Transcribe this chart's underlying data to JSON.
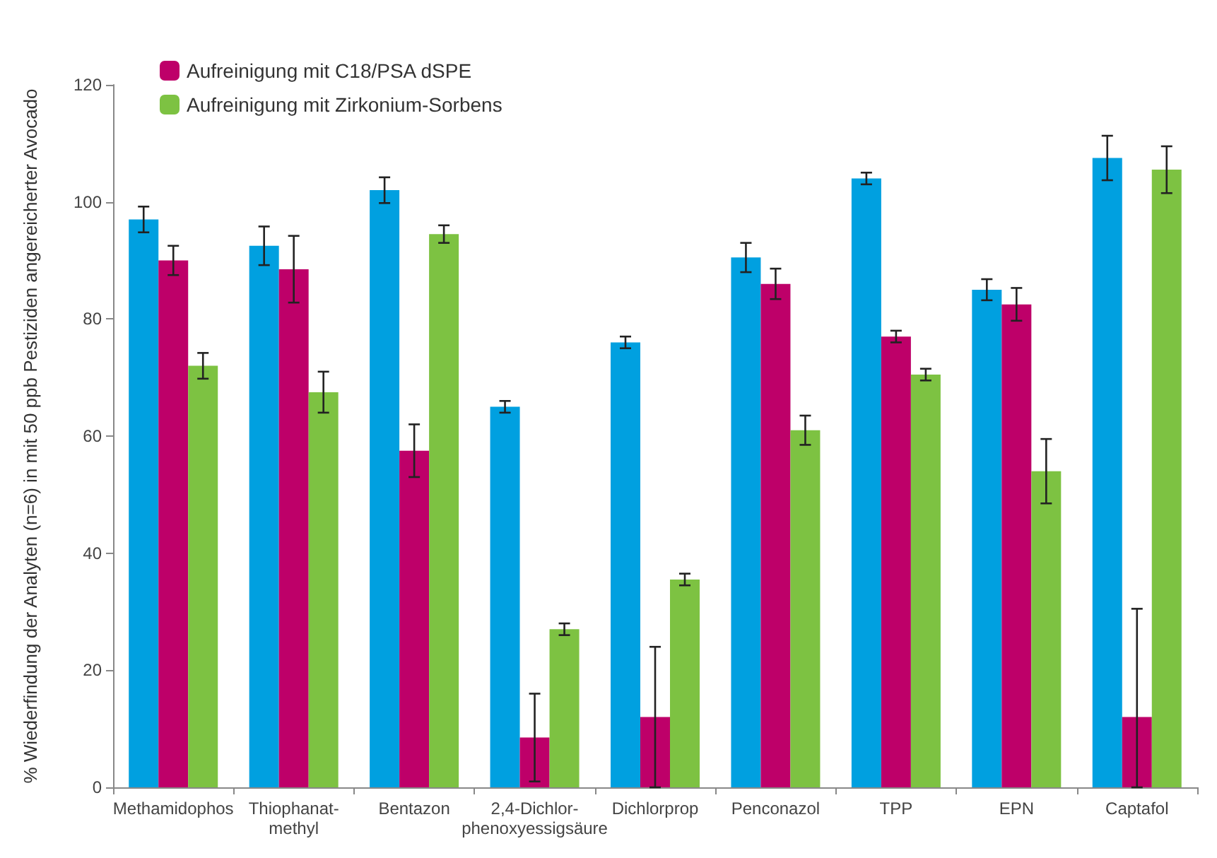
{
  "chart_data": {
    "type": "bar",
    "ylabel": "% Wiederfindung der Analyten (n=6) in mit 50 ppb Pestiziden angereicherter Avocado",
    "categories": [
      "Methamidophos",
      "Thiophanat-\nmethyl",
      "Bentazon",
      "2,4-Dichlor-\nphenoxyessigsäure",
      "Dichlorprop",
      "Penconazol",
      "TPP",
      "EPN",
      "Captafol"
    ],
    "series": [
      {
        "color": "#00a0e0",
        "values": [
          97,
          92.5,
          102,
          65,
          76,
          90.5,
          104,
          85,
          107.5
        ],
        "errors": [
          2.2,
          3.3,
          2.2,
          1,
          1,
          2.5,
          1,
          1.8,
          3.8
        ]
      },
      {
        "name": "Aufreinigung mit C18/PSA dSPE",
        "color": "#be0069",
        "values": [
          90,
          88.5,
          57.5,
          8.5,
          12,
          86,
          77,
          82.5,
          12
        ],
        "errors": [
          2.5,
          5.7,
          4.5,
          [
            1,
            16
          ],
          [
            0,
            24
          ],
          2.6,
          1,
          2.8,
          [
            0,
            30.5
          ]
        ]
      },
      {
        "name": "Aufreinigung mit Zirkonium-Sorbens",
        "color": "#7dc242",
        "values": [
          72,
          67.5,
          94.5,
          27,
          35.5,
          61,
          70.5,
          54,
          105.5
        ],
        "errors": [
          2.2,
          3.5,
          1.5,
          1,
          1,
          2.5,
          1,
          5.5,
          4
        ]
      }
    ],
    "ylim": [
      0,
      120
    ],
    "yticks": [
      0,
      20,
      40,
      60,
      80,
      100,
      120
    ],
    "grid": false,
    "legend": "top left"
  }
}
